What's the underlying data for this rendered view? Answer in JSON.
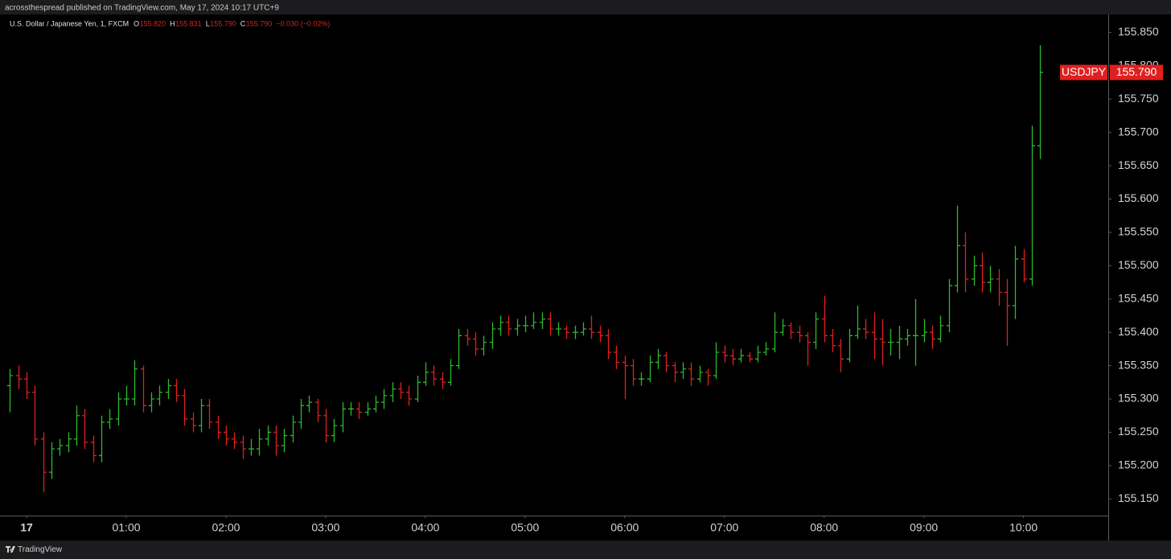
{
  "chart_data": {
    "type": "ohlc",
    "header": "acrossthespread published on TradingView.com, May 17, 2024 10:17 UTC+9",
    "footer": "TradingView",
    "symbol": "U.S. Dollar / Japanese Yen, 1, FXCM",
    "legend_values": [
      "O",
      "155.820",
      "H",
      "155.831",
      "L",
      "155.790",
      "C",
      "155.790",
      "−0.030 (−0.02%)"
    ],
    "ticker": "USDJPY",
    "last_price": {
      "value": 155.79,
      "label": "155.790"
    },
    "up_color": "#2db82d",
    "down_color": "#e0201f",
    "xlim": [
      "23:44",
      "10:51"
    ],
    "xticks": [
      {
        "value": "00:00",
        "label": "17"
      },
      "01:00",
      "02:00",
      "03:00",
      "04:00",
      "05:00",
      "06:00",
      "07:00",
      "08:00",
      "09:00",
      "10:00"
    ],
    "ylim": [
      155.125,
      155.877
    ],
    "yticks": [
      {
        "value": 155.85,
        "label": "155.850"
      },
      {
        "value": 155.8,
        "label": "155.800"
      },
      {
        "value": 155.75,
        "label": "155.750"
      },
      {
        "value": 155.7,
        "label": "155.700"
      },
      {
        "value": 155.65,
        "label": "155.650"
      },
      {
        "value": 155.6,
        "label": "155.600"
      },
      {
        "value": 155.55,
        "label": "155.550"
      },
      {
        "value": 155.5,
        "label": "155.500"
      },
      {
        "value": 155.45,
        "label": "155.450"
      },
      {
        "value": 155.4,
        "label": "155.400"
      },
      {
        "value": 155.35,
        "label": "155.350"
      },
      {
        "value": 155.3,
        "label": "155.300"
      },
      {
        "value": 155.25,
        "label": "155.250"
      },
      {
        "value": 155.2,
        "label": "155.200"
      },
      {
        "value": 155.15,
        "label": "155.150"
      }
    ],
    "x": [
      "23:50",
      "23:55",
      "00:00",
      "00:05",
      "00:10",
      "00:15",
      "00:20",
      "00:25",
      "00:30",
      "00:35",
      "00:40",
      "00:45",
      "00:50",
      "00:55",
      "01:00",
      "01:05",
      "01:10",
      "01:15",
      "01:20",
      "01:25",
      "01:30",
      "01:35",
      "01:40",
      "01:45",
      "01:50",
      "01:55",
      "02:00",
      "02:05",
      "02:10",
      "02:15",
      "02:20",
      "02:25",
      "02:30",
      "02:35",
      "02:40",
      "02:45",
      "02:50",
      "02:55",
      "03:00",
      "03:05",
      "03:10",
      "03:15",
      "03:20",
      "03:25",
      "03:30",
      "03:35",
      "03:40",
      "03:45",
      "03:50",
      "03:55",
      "04:00",
      "04:05",
      "04:10",
      "04:15",
      "04:20",
      "04:25",
      "04:30",
      "04:35",
      "04:40",
      "04:45",
      "04:50",
      "04:55",
      "05:00",
      "05:05",
      "05:10",
      "05:15",
      "05:20",
      "05:25",
      "05:30",
      "05:35",
      "05:40",
      "05:45",
      "05:50",
      "05:55",
      "06:00",
      "06:05",
      "06:10",
      "06:15",
      "06:20",
      "06:25",
      "06:30",
      "06:35",
      "06:40",
      "06:45",
      "06:50",
      "06:55",
      "07:00",
      "07:05",
      "07:10",
      "07:15",
      "07:20",
      "07:25",
      "07:30",
      "07:35",
      "07:40",
      "07:45",
      "07:50",
      "07:55",
      "08:00",
      "08:05",
      "08:10",
      "08:15",
      "08:20",
      "08:25",
      "08:30",
      "08:35",
      "08:40",
      "08:45",
      "08:50",
      "08:55",
      "09:00",
      "09:05",
      "09:10",
      "09:15",
      "09:20",
      "09:25",
      "09:30",
      "09:35",
      "09:40",
      "09:45",
      "09:50",
      "09:55",
      "10:00",
      "10:05",
      "10:10"
    ],
    "bars": [
      [
        155.32,
        155.345,
        155.28,
        155.335
      ],
      [
        155.335,
        155.35,
        155.315,
        155.33
      ],
      [
        155.33,
        155.34,
        155.3,
        155.31
      ],
      [
        155.31,
        155.32,
        155.23,
        155.24
      ],
      [
        155.24,
        155.25,
        155.16,
        155.19
      ],
      [
        155.19,
        155.235,
        155.18,
        155.225
      ],
      [
        155.225,
        155.24,
        155.215,
        155.23
      ],
      [
        155.23,
        155.25,
        155.22,
        155.24
      ],
      [
        155.24,
        155.29,
        155.23,
        155.275
      ],
      [
        155.275,
        155.285,
        155.225,
        155.235
      ],
      [
        155.235,
        155.245,
        155.205,
        155.215
      ],
      [
        155.215,
        155.275,
        155.205,
        155.265
      ],
      [
        155.265,
        155.285,
        155.255,
        155.27
      ],
      [
        155.27,
        155.31,
        155.26,
        155.3
      ],
      [
        155.3,
        155.32,
        155.29,
        155.3
      ],
      [
        155.3,
        155.358,
        155.29,
        155.345
      ],
      [
        155.345,
        155.35,
        155.28,
        155.29
      ],
      [
        155.29,
        155.31,
        155.28,
        155.3
      ],
      [
        155.3,
        155.32,
        155.29,
        155.31
      ],
      [
        155.31,
        155.33,
        155.3,
        155.32
      ],
      [
        155.32,
        155.33,
        155.295,
        155.305
      ],
      [
        155.305,
        155.315,
        155.26,
        155.27
      ],
      [
        155.27,
        155.28,
        155.25,
        155.26
      ],
      [
        155.26,
        155.3,
        155.25,
        155.29
      ],
      [
        155.29,
        155.3,
        155.255,
        155.265
      ],
      [
        155.265,
        155.275,
        155.24,
        155.25
      ],
      [
        155.25,
        155.26,
        155.23,
        155.24
      ],
      [
        155.24,
        155.25,
        155.225,
        155.235
      ],
      [
        155.235,
        155.245,
        155.21,
        155.225
      ],
      [
        155.225,
        155.24,
        155.215,
        155.225
      ],
      [
        155.225,
        155.255,
        155.215,
        155.24
      ],
      [
        155.24,
        155.26,
        155.23,
        155.25
      ],
      [
        155.25,
        155.26,
        155.215,
        155.23
      ],
      [
        155.23,
        155.255,
        155.22,
        155.245
      ],
      [
        155.245,
        155.275,
        155.235,
        155.265
      ],
      [
        155.265,
        155.3,
        155.255,
        155.29
      ],
      [
        155.29,
        155.305,
        155.28,
        155.295
      ],
      [
        155.295,
        155.3,
        155.265,
        155.275
      ],
      [
        155.275,
        155.285,
        155.235,
        155.245
      ],
      [
        155.245,
        155.27,
        155.235,
        155.26
      ],
      [
        155.26,
        155.295,
        155.25,
        155.285
      ],
      [
        155.285,
        155.295,
        155.275,
        155.285
      ],
      [
        155.285,
        155.295,
        155.27,
        155.28
      ],
      [
        155.28,
        155.295,
        155.275,
        155.285
      ],
      [
        155.285,
        155.305,
        155.28,
        155.295
      ],
      [
        155.295,
        155.315,
        155.285,
        155.305
      ],
      [
        155.305,
        155.325,
        155.295,
        155.315
      ],
      [
        155.315,
        155.325,
        155.3,
        155.31
      ],
      [
        155.31,
        155.32,
        155.29,
        155.3
      ],
      [
        155.3,
        155.335,
        155.295,
        155.325
      ],
      [
        155.325,
        155.355,
        155.32,
        155.34
      ],
      [
        155.34,
        155.35,
        155.32,
        155.33
      ],
      [
        155.33,
        155.34,
        155.315,
        155.325
      ],
      [
        155.325,
        155.36,
        155.32,
        155.35
      ],
      [
        155.35,
        155.405,
        155.345,
        155.395
      ],
      [
        155.395,
        155.405,
        155.38,
        155.39
      ],
      [
        155.39,
        155.4,
        155.365,
        155.375
      ],
      [
        155.375,
        155.395,
        155.365,
        155.385
      ],
      [
        155.385,
        155.415,
        155.375,
        155.405
      ],
      [
        155.405,
        155.425,
        155.395,
        155.415
      ],
      [
        155.415,
        155.425,
        155.395,
        155.405
      ],
      [
        155.405,
        155.42,
        155.395,
        155.41
      ],
      [
        155.41,
        155.425,
        155.4,
        155.41
      ],
      [
        155.41,
        155.43,
        155.405,
        155.415
      ],
      [
        155.415,
        155.43,
        155.405,
        155.42
      ],
      [
        155.42,
        155.43,
        155.395,
        155.405
      ],
      [
        155.405,
        155.415,
        155.395,
        155.405
      ],
      [
        155.405,
        155.41,
        155.39,
        155.4
      ],
      [
        155.4,
        155.41,
        155.39,
        155.4
      ],
      [
        155.4,
        155.415,
        155.395,
        155.405
      ],
      [
        155.405,
        155.425,
        155.39,
        155.4
      ],
      [
        155.4,
        155.41,
        155.385,
        155.395
      ],
      [
        155.395,
        155.405,
        155.36,
        155.37
      ],
      [
        155.37,
        155.38,
        155.345,
        155.355
      ],
      [
        155.355,
        155.365,
        155.3,
        155.35
      ],
      [
        155.35,
        155.36,
        155.32,
        155.33
      ],
      [
        155.33,
        155.34,
        155.32,
        155.33
      ],
      [
        155.33,
        155.365,
        155.325,
        155.355
      ],
      [
        155.355,
        155.375,
        155.345,
        155.365
      ],
      [
        155.365,
        155.37,
        155.34,
        155.35
      ],
      [
        155.35,
        155.355,
        155.325,
        155.34
      ],
      [
        155.34,
        155.355,
        155.33,
        155.345
      ],
      [
        155.345,
        155.355,
        155.32,
        155.33
      ],
      [
        155.33,
        155.35,
        155.325,
        155.34
      ],
      [
        155.34,
        155.345,
        155.32,
        155.335
      ],
      [
        155.335,
        155.385,
        155.33,
        155.37
      ],
      [
        155.37,
        155.38,
        155.355,
        155.365
      ],
      [
        155.365,
        155.375,
        155.35,
        155.36
      ],
      [
        155.36,
        155.375,
        155.355,
        155.365
      ],
      [
        155.365,
        155.37,
        155.355,
        155.36
      ],
      [
        155.36,
        155.38,
        155.355,
        155.37
      ],
      [
        155.37,
        155.385,
        155.365,
        155.375
      ],
      [
        155.375,
        155.43,
        155.37,
        155.4
      ],
      [
        155.4,
        155.42,
        155.395,
        155.41
      ],
      [
        155.41,
        155.415,
        155.39,
        155.4
      ],
      [
        155.4,
        155.41,
        155.385,
        155.395
      ],
      [
        155.395,
        155.4,
        155.35,
        155.385
      ],
      [
        155.385,
        155.43,
        155.375,
        155.42
      ],
      [
        155.42,
        155.455,
        155.385,
        155.395
      ],
      [
        155.395,
        155.405,
        155.37,
        155.38
      ],
      [
        155.38,
        155.39,
        155.34,
        155.36
      ],
      [
        155.36,
        155.405,
        155.355,
        155.395
      ],
      [
        155.395,
        155.44,
        155.39,
        155.405
      ],
      [
        155.405,
        155.42,
        155.39,
        155.4
      ],
      [
        155.4,
        155.43,
        155.36,
        155.39
      ],
      [
        155.39,
        155.42,
        155.35,
        155.385
      ],
      [
        155.385,
        155.405,
        155.365,
        155.385
      ],
      [
        155.385,
        155.41,
        155.36,
        155.39
      ],
      [
        155.39,
        155.405,
        155.38,
        155.395
      ],
      [
        155.395,
        155.45,
        155.35,
        155.395
      ],
      [
        155.395,
        155.42,
        155.385,
        155.4
      ],
      [
        155.4,
        155.41,
        155.375,
        155.39
      ],
      [
        155.39,
        155.425,
        155.385,
        155.41
      ],
      [
        155.41,
        155.48,
        155.4,
        155.47
      ],
      [
        155.47,
        155.59,
        155.46,
        155.53
      ],
      [
        155.53,
        155.55,
        155.46,
        155.48
      ],
      [
        155.48,
        155.515,
        155.47,
        155.5
      ],
      [
        155.5,
        155.52,
        155.46,
        155.475
      ],
      [
        155.475,
        155.5,
        155.46,
        155.48
      ],
      [
        155.48,
        155.495,
        155.44,
        155.46
      ],
      [
        155.46,
        155.48,
        155.38,
        155.44
      ],
      [
        155.44,
        155.53,
        155.42,
        155.51
      ],
      [
        155.51,
        155.525,
        155.475,
        155.48
      ],
      [
        155.48,
        155.71,
        155.47,
        155.68
      ],
      [
        155.68,
        155.831,
        155.66,
        155.79
      ]
    ]
  }
}
